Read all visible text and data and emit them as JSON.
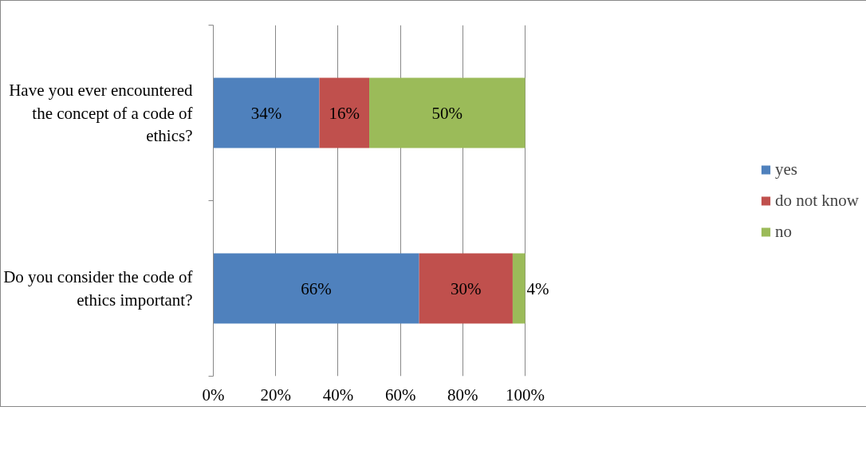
{
  "chart_data": {
    "type": "bar",
    "orientation": "horizontal",
    "stacked": true,
    "categories": [
      "Have you ever encountered the concept of a code of ethics?",
      "Do you consider the code of ethics important?"
    ],
    "series": [
      {
        "name": "yes",
        "color": "#4f81bd",
        "values": [
          34,
          66
        ],
        "value_labels": [
          "34%",
          "66%"
        ]
      },
      {
        "name": "do not know",
        "color": "#c0504d",
        "values": [
          16,
          30
        ],
        "value_labels": [
          "16%",
          "30%"
        ]
      },
      {
        "name": "no",
        "color": "#9bbb59",
        "values": [
          50,
          4
        ],
        "value_labels": [
          "50%",
          "4%"
        ]
      }
    ],
    "xlim": [
      0,
      100
    ],
    "xticks": [
      {
        "value": 0,
        "label": "0%"
      },
      {
        "value": 20,
        "label": "20%"
      },
      {
        "value": 40,
        "label": "40%"
      },
      {
        "value": 60,
        "label": "60%"
      },
      {
        "value": 80,
        "label": "80%"
      },
      {
        "value": 100,
        "label": "100%"
      }
    ],
    "grid": "x",
    "legend": "right"
  }
}
